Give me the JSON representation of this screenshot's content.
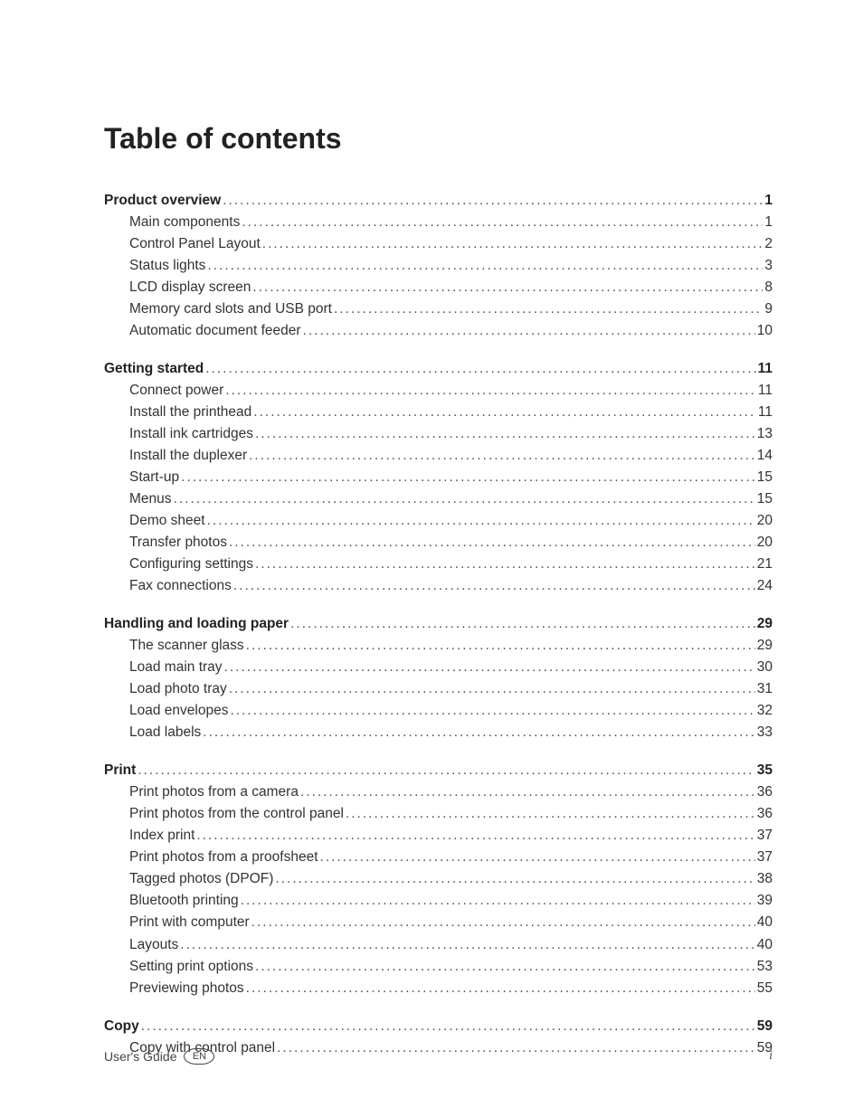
{
  "title": "Table of contents",
  "sections": [
    {
      "chapter": {
        "label": "Product overview",
        "page": "1"
      },
      "items": [
        {
          "label": "Main components",
          "page": "1"
        },
        {
          "label": "Control Panel Layout",
          "page": "2"
        },
        {
          "label": "Status lights",
          "page": "3"
        },
        {
          "label": "LCD display screen",
          "page": "8"
        },
        {
          "label": "Memory card slots and USB port",
          "page": "9"
        },
        {
          "label": "Automatic document feeder",
          "page": "10"
        }
      ]
    },
    {
      "chapter": {
        "label": "Getting started",
        "page": "11"
      },
      "items": [
        {
          "label": "Connect power",
          "page": "11"
        },
        {
          "label": "Install the printhead",
          "page": "11"
        },
        {
          "label": "Install ink cartridges",
          "page": "13"
        },
        {
          "label": "Install the duplexer",
          "page": "14"
        },
        {
          "label": "Start-up",
          "page": "15"
        },
        {
          "label": "Menus",
          "page": "15"
        },
        {
          "label": "Demo sheet",
          "page": "20"
        },
        {
          "label": "Transfer photos",
          "page": "20"
        },
        {
          "label": "Configuring settings",
          "page": "21"
        },
        {
          "label": "Fax connections",
          "page": "24"
        }
      ]
    },
    {
      "chapter": {
        "label": "Handling and loading paper",
        "page": "29"
      },
      "items": [
        {
          "label": "The scanner glass",
          "page": "29"
        },
        {
          "label": "Load main tray",
          "page": "30"
        },
        {
          "label": "Load photo tray",
          "page": "31"
        },
        {
          "label": "Load envelopes",
          "page": "32"
        },
        {
          "label": "Load labels",
          "page": "33"
        }
      ]
    },
    {
      "chapter": {
        "label": "Print",
        "page": "35"
      },
      "items": [
        {
          "label": "Print photos from a camera",
          "page": "36"
        },
        {
          "label": "Print photos from the control panel",
          "page": "36"
        },
        {
          "label": "Index print",
          "page": "37"
        },
        {
          "label": "Print photos from a proofsheet",
          "page": "37"
        },
        {
          "label": "Tagged photos (DPOF)",
          "page": "38"
        },
        {
          "label": "Bluetooth printing",
          "page": "39"
        },
        {
          "label": "Print with computer",
          "page": "40"
        },
        {
          "label": "Layouts",
          "page": "40"
        },
        {
          "label": "Setting print options",
          "page": "53"
        },
        {
          "label": "Previewing photos",
          "page": "55"
        }
      ]
    },
    {
      "chapter": {
        "label": "Copy",
        "page": "59"
      },
      "items": [
        {
          "label": "Copy with control panel",
          "page": "59"
        }
      ]
    }
  ],
  "footer": {
    "guide_label": "User's Guide",
    "lang": "EN",
    "page_number": "i"
  }
}
